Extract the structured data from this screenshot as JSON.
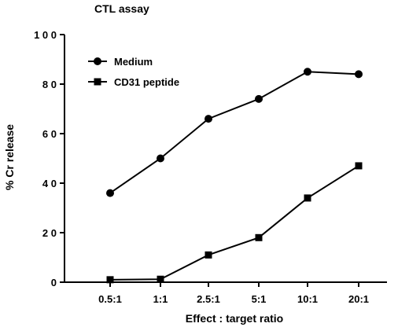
{
  "chart_data": {
    "type": "line",
    "title": "CTL assay",
    "xlabel": "Effect : target ratio",
    "ylabel": "% Cr release",
    "categories": [
      "0.5:1",
      "1:1",
      "2.5:1",
      "5:1",
      "10:1",
      "20:1"
    ],
    "ylim": [
      0,
      100
    ],
    "yticks": [
      "0",
      "2 0",
      "4 0",
      "6 0",
      "8 0",
      "1 0 0"
    ],
    "ytick_values": [
      0,
      20,
      40,
      60,
      80,
      100
    ],
    "grid": false,
    "legend_position": "top-left",
    "series": [
      {
        "name": "Medium",
        "marker": "circle",
        "color": "#000000",
        "values": [
          36,
          50,
          66,
          74,
          85,
          84
        ]
      },
      {
        "name": "CD31  peptide",
        "marker": "square",
        "color": "#000000",
        "values": [
          1,
          1.2,
          11,
          18,
          34,
          47
        ]
      }
    ]
  }
}
